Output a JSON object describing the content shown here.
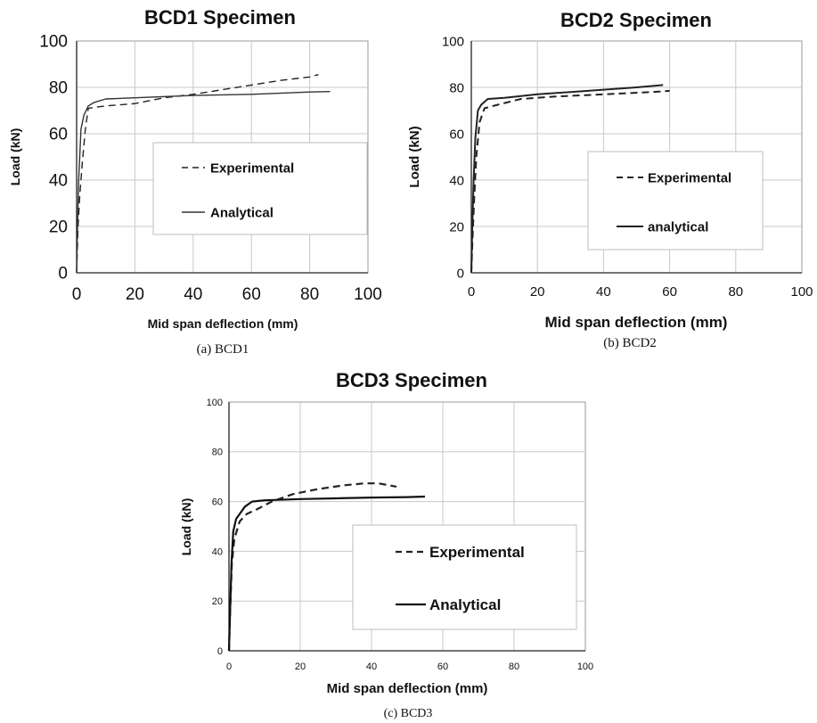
{
  "chart_data": [
    {
      "type": "line",
      "title": "BCD1 Specimen",
      "caption": "(a) BCD1",
      "xlabel": "Mid span deflection (mm)",
      "ylabel": "Load (kN)",
      "xlim": [
        0,
        100
      ],
      "ylim": [
        0,
        100
      ],
      "xticks": [
        "0",
        "20",
        "40",
        "60",
        "80",
        "100"
      ],
      "yticks": [
        "0",
        "20",
        "40",
        "60",
        "80",
        "100"
      ],
      "grid": true,
      "legend_position": "center-right",
      "series": [
        {
          "name": "Experimental",
          "style": "dashed",
          "color": "#222222",
          "x": [
            0,
            0.5,
            1,
            2,
            3,
            4,
            10,
            20,
            30,
            40,
            50,
            60,
            70,
            80,
            83
          ],
          "y": [
            0,
            20,
            32,
            48,
            62,
            71,
            72,
            73,
            75.5,
            77,
            79,
            81,
            83,
            84.5,
            85.5
          ]
        },
        {
          "name": "Analytical",
          "style": "solid",
          "color": "#333333",
          "x": [
            0,
            0.3,
            0.7,
            1.5,
            2.5,
            4,
            6,
            10,
            20,
            40,
            60,
            80,
            87
          ],
          "y": [
            0,
            20,
            40,
            62,
            68,
            72,
            73.5,
            75,
            75.5,
            76.5,
            77,
            78,
            78.2
          ]
        }
      ]
    },
    {
      "type": "line",
      "title": "BCD2 Specimen",
      "caption": "(b) BCD2",
      "xlabel": "Mid span deflection (mm)",
      "ylabel": "Load (kN)",
      "xlim": [
        0,
        100
      ],
      "ylim": [
        0,
        100
      ],
      "xticks": [
        "0",
        "20",
        "40",
        "60",
        "80",
        "100"
      ],
      "yticks": [
        "0",
        "20",
        "40",
        "60",
        "80",
        "100"
      ],
      "grid": true,
      "legend_position": "center-right",
      "series": [
        {
          "name": "Experimental",
          "style": "dashed",
          "color": "#222222",
          "x": [
            0,
            0.3,
            0.8,
            1.5,
            2.5,
            4,
            8,
            15,
            25,
            40,
            55,
            60
          ],
          "y": [
            0,
            12,
            30,
            50,
            65,
            71,
            72.5,
            75,
            76,
            77,
            78,
            78.5
          ]
        },
        {
          "name": "analytical",
          "style": "solid",
          "color": "#222222",
          "x": [
            0,
            0.3,
            0.7,
            1.2,
            2,
            3,
            5,
            10,
            20,
            30,
            40,
            50,
            58
          ],
          "y": [
            0,
            20,
            40,
            58,
            70,
            72.5,
            75,
            75.5,
            77,
            78,
            79,
            80,
            81
          ]
        }
      ]
    },
    {
      "type": "line",
      "title": "BCD3 Specimen",
      "caption": "(c) BCD3",
      "xlabel": "Mid span deflection (mm)",
      "ylabel": "Load (kN)",
      "xlim": [
        0,
        100
      ],
      "ylim": [
        0,
        100
      ],
      "xticks": [
        "0",
        "20",
        "40",
        "60",
        "80",
        "100"
      ],
      "yticks": [
        "0",
        "20",
        "40",
        "60",
        "80",
        "100"
      ],
      "grid": true,
      "legend_position": "center-right",
      "series": [
        {
          "name": "Experimental",
          "style": "dashed",
          "color": "#222222",
          "x": [
            0,
            0.3,
            0.8,
            1.5,
            3,
            5,
            8,
            12,
            18,
            25,
            32,
            38,
            42,
            47
          ],
          "y": [
            0,
            15,
            35,
            45,
            52,
            55,
            57,
            60,
            63,
            65,
            66.5,
            67.3,
            67.3,
            66
          ]
        },
        {
          "name": "Analytical",
          "style": "solid",
          "color": "#111111",
          "x": [
            0,
            0.3,
            0.7,
            1.2,
            2,
            3,
            4.5,
            6.5,
            10,
            20,
            30,
            40,
            50,
            55
          ],
          "y": [
            0,
            15,
            35,
            48,
            53,
            55,
            58,
            60,
            60.5,
            61,
            61.3,
            61.6,
            61.8,
            62
          ]
        }
      ]
    }
  ]
}
